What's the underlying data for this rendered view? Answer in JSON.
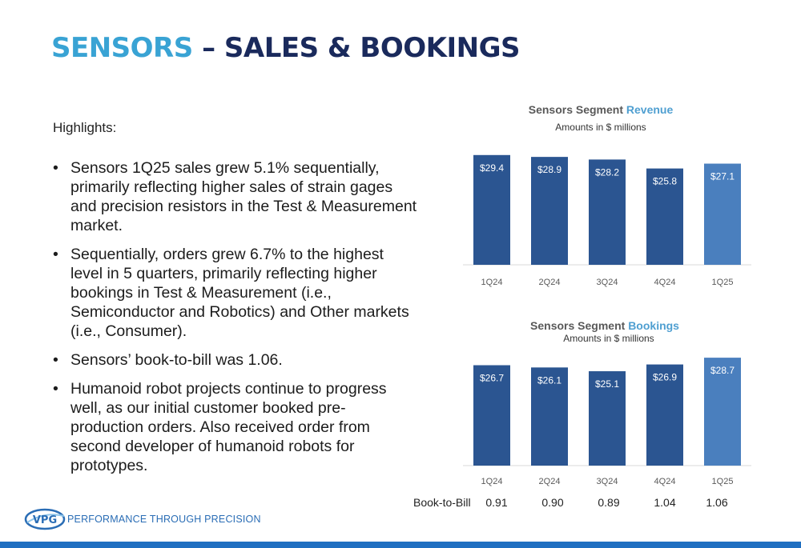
{
  "title": {
    "part1": "SENSORS",
    "part2": " – SALES & BOOKINGS"
  },
  "highlights_label": "Highlights:",
  "bullets": [
    "Sensors 1Q25 sales grew 5.1% sequentially, primarily reflecting higher sales of strain gages and precision resistors in the Test & Measurement market.",
    "Sequentially, orders grew 6.7% to the highest level in 5 quarters, primarily reflecting higher bookings in Test & Measurement (i.e., Semiconductor and Robotics) and Other markets (i.e., Consumer).",
    "Sensors’ book-to-bill was 1.06.",
    "Humanoid robot projects continue to progress well, as our initial customer booked pre-production orders. Also received order from second developer of humanoid robots for prototypes."
  ],
  "bullet_glyph": "•",
  "chart_data": [
    {
      "type": "bar",
      "title_prefix": "Sensors Segment ",
      "title_accent": "Revenue",
      "subtitle": "Amounts in $ millions",
      "categories": [
        "1Q24",
        "2Q24",
        "3Q24",
        "4Q24",
        "1Q25"
      ],
      "values": [
        29.4,
        28.9,
        28.2,
        25.8,
        27.1
      ],
      "labels": [
        "$29.4",
        "$28.9",
        "$28.2",
        "$25.8",
        "$27.1"
      ],
      "ylim": [
        0,
        30
      ],
      "colors": [
        "#2b5591",
        "#2b5591",
        "#2b5591",
        "#2b5591",
        "#4a7fbe"
      ],
      "grid": false
    },
    {
      "type": "bar",
      "title_prefix": "Sensors Segment ",
      "title_accent": "Bookings",
      "subtitle": "Amounts in $ millions",
      "categories": [
        "1Q24",
        "2Q24",
        "3Q24",
        "4Q24",
        "1Q25"
      ],
      "values": [
        26.7,
        26.1,
        25.1,
        26.9,
        28.7
      ],
      "labels": [
        "$26.7",
        "$26.1",
        "$25.1",
        "$26.9",
        "$28.7"
      ],
      "ylim": [
        0,
        30
      ],
      "colors": [
        "#2b5591",
        "#2b5591",
        "#2b5591",
        "#2b5591",
        "#4a7fbe"
      ],
      "grid": false
    }
  ],
  "book_to_bill": {
    "label": "Book-to-Bill",
    "values": [
      "0.91",
      "0.90",
      "0.89",
      "1.04",
      "1.06"
    ]
  },
  "footer": {
    "logo_text": "VPG",
    "tagline": "PERFORMANCE THROUGH PRECISION",
    "bar_color": "#1f6fc1"
  }
}
